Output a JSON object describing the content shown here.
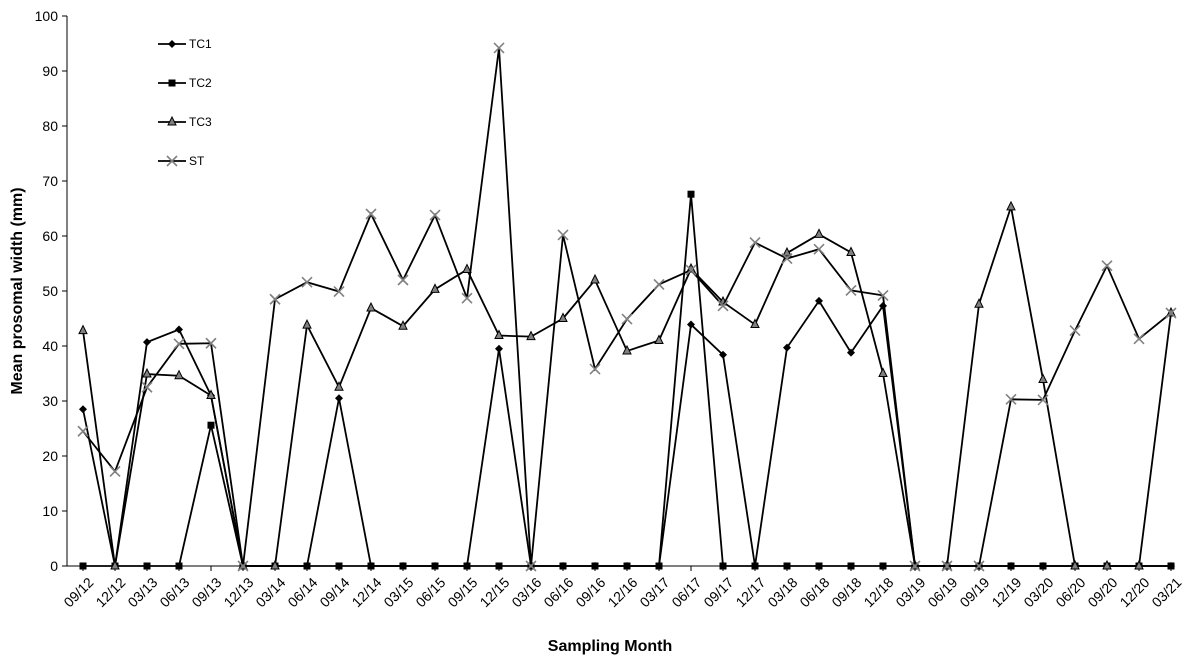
{
  "chart_data": {
    "type": "line",
    "title": "",
    "xlabel": "Sampling Month",
    "ylabel": "Mean prosomal width (mm)",
    "ylim": [
      0,
      100
    ],
    "yticks": [
      0,
      10,
      20,
      30,
      40,
      50,
      60,
      70,
      80,
      90,
      100
    ],
    "grid": false,
    "legend_position": "top-left",
    "categories": [
      "09/12",
      "12/12",
      "03/13",
      "06/13",
      "09/13",
      "12/13",
      "03/14",
      "06/14",
      "09/14",
      "12/14",
      "03/15",
      "06/15",
      "09/15",
      "12/15",
      "03/16",
      "06/16",
      "09/16",
      "12/16",
      "03/17",
      "06/17",
      "09/17",
      "12/17",
      "03/18",
      "06/18",
      "09/18",
      "12/18",
      "03/19",
      "06/19",
      "09/19",
      "12/19",
      "03/20",
      "06/20",
      "09/20",
      "12/20",
      "03/21"
    ],
    "series": [
      {
        "name": "TC1",
        "marker": "diamond",
        "color": "#000000",
        "values": [
          28.5,
          0,
          40.7,
          43,
          31,
          0,
          0,
          0,
          30.5,
          0,
          0,
          0,
          0,
          39.5,
          0,
          0,
          0,
          0,
          0,
          43.9,
          38.4,
          0,
          39.7,
          48.2,
          38.8,
          47.3,
          0,
          0,
          0,
          0,
          0,
          0,
          0,
          0,
          0
        ]
      },
      {
        "name": "TC2",
        "marker": "square",
        "color": "#000000",
        "values": [
          0,
          0,
          0,
          0,
          25.6,
          0,
          0,
          0,
          0,
          0,
          0,
          0,
          0,
          0,
          0,
          0,
          0,
          0,
          0,
          67.6,
          0,
          0,
          0,
          0,
          0,
          0,
          0,
          0,
          0,
          0,
          0,
          0,
          0,
          0,
          0
        ]
      },
      {
        "name": "TC3",
        "marker": "triangle",
        "color": "#000000",
        "values": [
          42.8,
          0,
          34.9,
          34.6,
          31,
          0,
          0,
          43.8,
          32.5,
          46.9,
          43.6,
          50.3,
          53.9,
          41.9,
          41.7,
          45,
          52,
          39.1,
          41,
          54,
          48,
          43.9,
          56.9,
          60.3,
          57,
          35,
          0,
          0,
          47.6,
          65.3,
          33.9,
          0,
          0,
          0,
          46
        ]
      },
      {
        "name": "ST",
        "marker": "x",
        "color": "#000000",
        "values": [
          24.5,
          17.2,
          32.5,
          40.4,
          40.5,
          0,
          48.5,
          51.6,
          49.9,
          64,
          52,
          63.8,
          48.7,
          94.2,
          0,
          60.2,
          35.8,
          44.9,
          51.2,
          53.8,
          47.3,
          58.8,
          55.9,
          57.6,
          50.1,
          49.2,
          0,
          0,
          0,
          30.3,
          30.2,
          42.8,
          54.6,
          41.3,
          46
        ]
      }
    ]
  }
}
